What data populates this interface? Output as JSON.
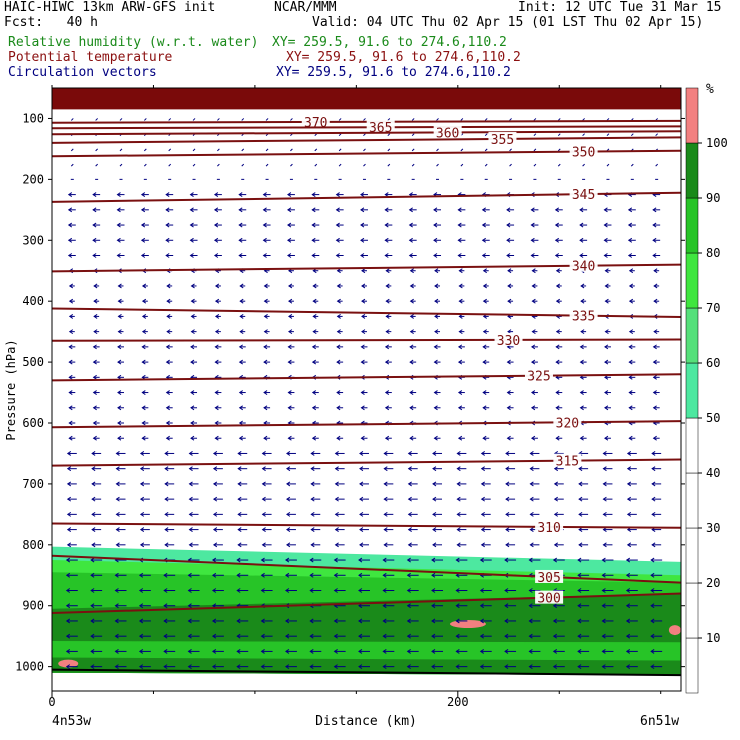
{
  "header": {
    "model": "HAIC-HIWC 13km ARW-GFS init",
    "org": "NCAR/MMM",
    "init": "Init: 12 UTC Tue 31 Mar 15",
    "fcst": "Fcst:   40 h",
    "valid": "Valid: 04 UTC Thu 02 Apr 15 (01 LST Thu 02 Apr 15)"
  },
  "fields": [
    {
      "label": "Relative humidity (w.r.t. water)",
      "xy": "XY= 259.5, 91.6 to 274.6,110.2",
      "color": "#1a8a1a"
    },
    {
      "label": "Potential temperature",
      "xy": "XY= 259.5, 91.6 to 274.6,110.2",
      "color": "#8b1010"
    },
    {
      "label": "Circulation vectors",
      "xy": "XY= 259.5, 91.6 to 274.6,110.2",
      "color": "#000080"
    }
  ],
  "chart_data": {
    "type": "heatmap",
    "xlabel": "Distance (km)",
    "ylabel": "Pressure (hPa)",
    "xlim": [
      0,
      310
    ],
    "ylim": [
      1040,
      50
    ],
    "x_ticks": [
      0,
      200
    ],
    "y_ticks": [
      100,
      200,
      300,
      400,
      500,
      600,
      700,
      800,
      900,
      1000
    ],
    "x_endpoint_labels": [
      "4n53w",
      "6n51w"
    ],
    "colorbar": {
      "unit": "%",
      "levels": [
        10,
        20,
        30,
        40,
        50,
        60,
        70,
        80,
        90,
        100
      ],
      "bands": [
        {
          "from": 50,
          "to": 60,
          "color": "#4de8a0"
        },
        {
          "from": 60,
          "to": 70,
          "color": "#55e07a"
        },
        {
          "from": 70,
          "to": 80,
          "color": "#3fe63f"
        },
        {
          "from": 80,
          "to": 90,
          "color": "#27c427"
        },
        {
          "from": 90,
          "to": 100,
          "color": "#1a8a1a"
        },
        {
          "from": 100,
          "to": 110,
          "color": "#f28080"
        }
      ]
    },
    "theta_contours": [
      {
        "level": 370,
        "label": "370",
        "p_left": 107,
        "p_right": 104,
        "label_x": 130
      },
      {
        "level": 365,
        "label": "365",
        "p_left": 116,
        "p_right": 113,
        "label_x": 162
      },
      {
        "level": 360,
        "label": "360",
        "p_left": 126,
        "p_right": 121,
        "label_x": 195
      },
      {
        "level": 355,
        "label": "355",
        "p_left": 140,
        "p_right": 131,
        "label_x": 222
      },
      {
        "level": 350,
        "label": "350",
        "p_left": 162,
        "p_right": 153,
        "label_x": 262
      },
      {
        "level": 345,
        "label": "345",
        "p_left": 237,
        "p_right": 222,
        "label_x": 262
      },
      {
        "level": 340,
        "label": "340",
        "p_left": 351,
        "p_right": 340,
        "label_x": 262
      },
      {
        "level": 335,
        "label": "335",
        "p_left": 412,
        "p_right": 426,
        "label_x": 262
      },
      {
        "level": 330,
        "label": "330",
        "p_left": 465,
        "p_right": 463,
        "label_x": 225
      },
      {
        "level": 325,
        "label": "325",
        "p_left": 530,
        "p_right": 520,
        "label_x": 240
      },
      {
        "level": 320,
        "label": "320",
        "p_left": 607,
        "p_right": 597,
        "label_x": 254
      },
      {
        "level": 315,
        "label": "315",
        "p_left": 670,
        "p_right": 660,
        "label_x": 254
      },
      {
        "level": 310,
        "label": "310",
        "p_left": 765,
        "p_right": 772,
        "label_x": 245
      },
      {
        "level": 305,
        "label": "305",
        "p_left": 818,
        "p_right": 862,
        "label_x": 245
      },
      {
        "level": 300,
        "label": "300",
        "p_left": 912,
        "p_right": 880,
        "label_x": 245
      }
    ],
    "top_rh_layer": {
      "p_top": 50,
      "p_bottom": 85,
      "value": 105
    },
    "surface_pressure": {
      "p_left": 1005,
      "p_right": 1014
    }
  }
}
